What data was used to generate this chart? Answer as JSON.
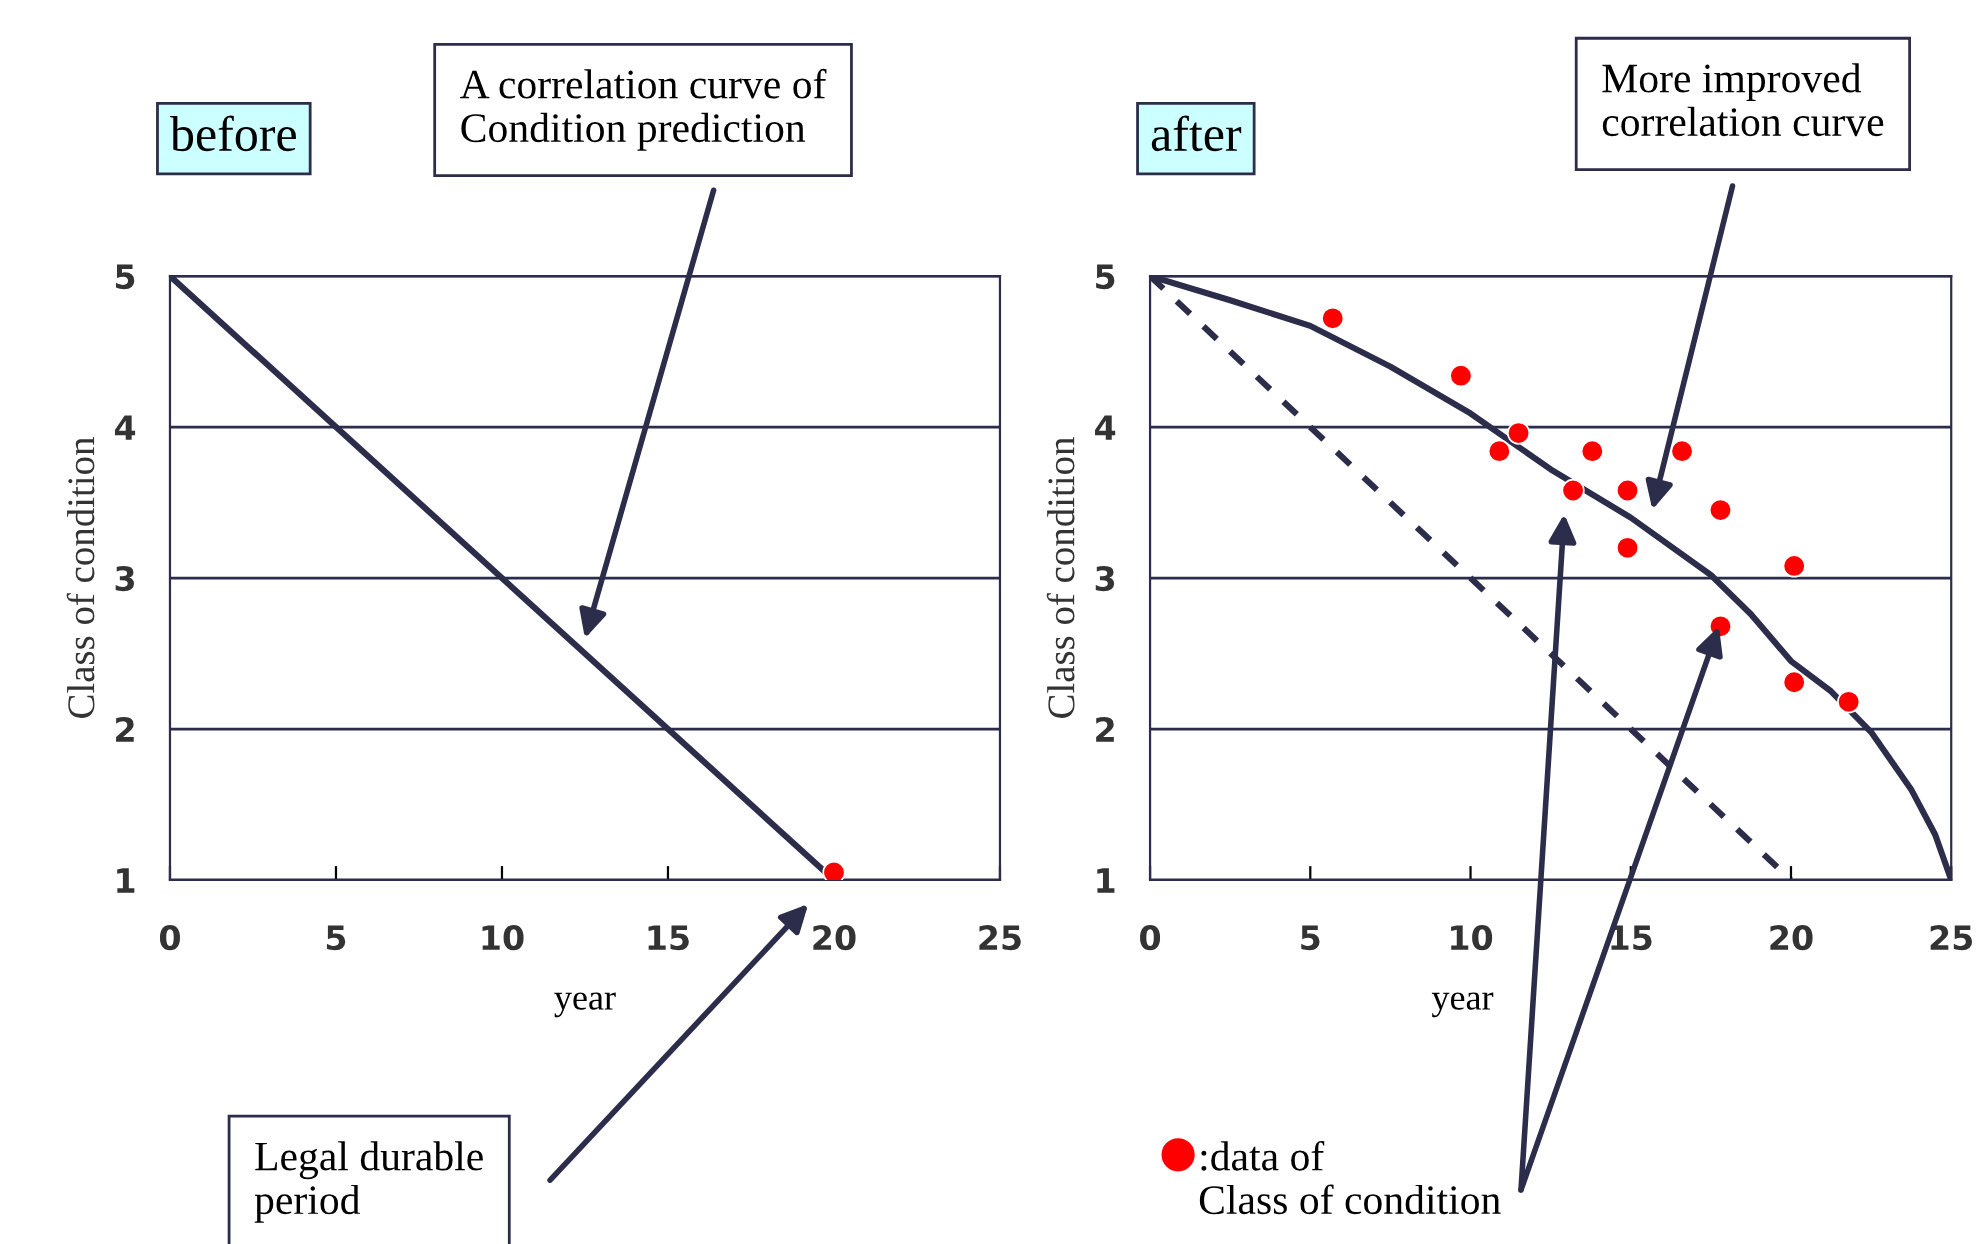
{
  "chart_data": [
    {
      "type": "line",
      "title": "before",
      "xlabel": "year",
      "ylabel": "Class of condition",
      "xlim": [
        0,
        25
      ],
      "ylim": [
        1,
        5
      ],
      "xticks": [
        0,
        5,
        10,
        15,
        20,
        25
      ],
      "yticks": [
        1,
        2,
        3,
        4,
        5
      ],
      "grid": "y",
      "line_style": "solid",
      "series": [
        {
          "color": "#2b2d4a",
          "x": [
            0,
            20
          ],
          "values": [
            5,
            1
          ]
        },
        {
          "type": "scatter",
          "color": "#ff0000",
          "x": [
            20
          ],
          "values": [
            1.05
          ]
        }
      ],
      "annotations": [
        "A correlation curve of\nCondition prediction",
        "Legal durable\nperiod"
      ]
    },
    {
      "type": "line",
      "title": "after",
      "xlabel": "year",
      "ylabel": "Class of condition",
      "xlim": [
        0,
        25
      ],
      "ylim": [
        1,
        5
      ],
      "xticks": [
        0,
        5,
        10,
        15,
        20,
        25
      ],
      "yticks": [
        1,
        2,
        3,
        4,
        5
      ],
      "grid": "y",
      "series": [
        {
          "color": "#2b2d4a",
          "line_style": "dashed",
          "x": [
            0,
            20
          ],
          "values": [
            5,
            1
          ]
        },
        {
          "color": "#2b2d4a",
          "line_style": "solid",
          "x": [
            0,
            2.5,
            5,
            7.5,
            10,
            12.5,
            15,
            17.5,
            18.75,
            20,
            21.25,
            22.5,
            23.75,
            24.5,
            25
          ],
          "values": [
            5,
            4.84,
            4.67,
            4.4,
            4.09,
            3.72,
            3.4,
            3.02,
            2.76,
            2.45,
            2.25,
            1.98,
            1.6,
            1.3,
            1
          ]
        },
        {
          "type": "scatter",
          "color": "#ff0000",
          "x": [
            5.7,
            9.7,
            10.9,
            11.5,
            13.2,
            13.8,
            14.9,
            14.9,
            16.6,
            17.8,
            17.8,
            20.1,
            20.1,
            21.8
          ],
          "values": [
            4.72,
            4.34,
            3.84,
            3.96,
            3.58,
            3.84,
            3.58,
            3.2,
            3.84,
            3.45,
            2.68,
            3.08,
            2.31,
            2.18
          ]
        }
      ],
      "annotations": [
        "More improved\ncorrelation curve",
        ":data of\nClass of condition"
      ]
    }
  ]
}
